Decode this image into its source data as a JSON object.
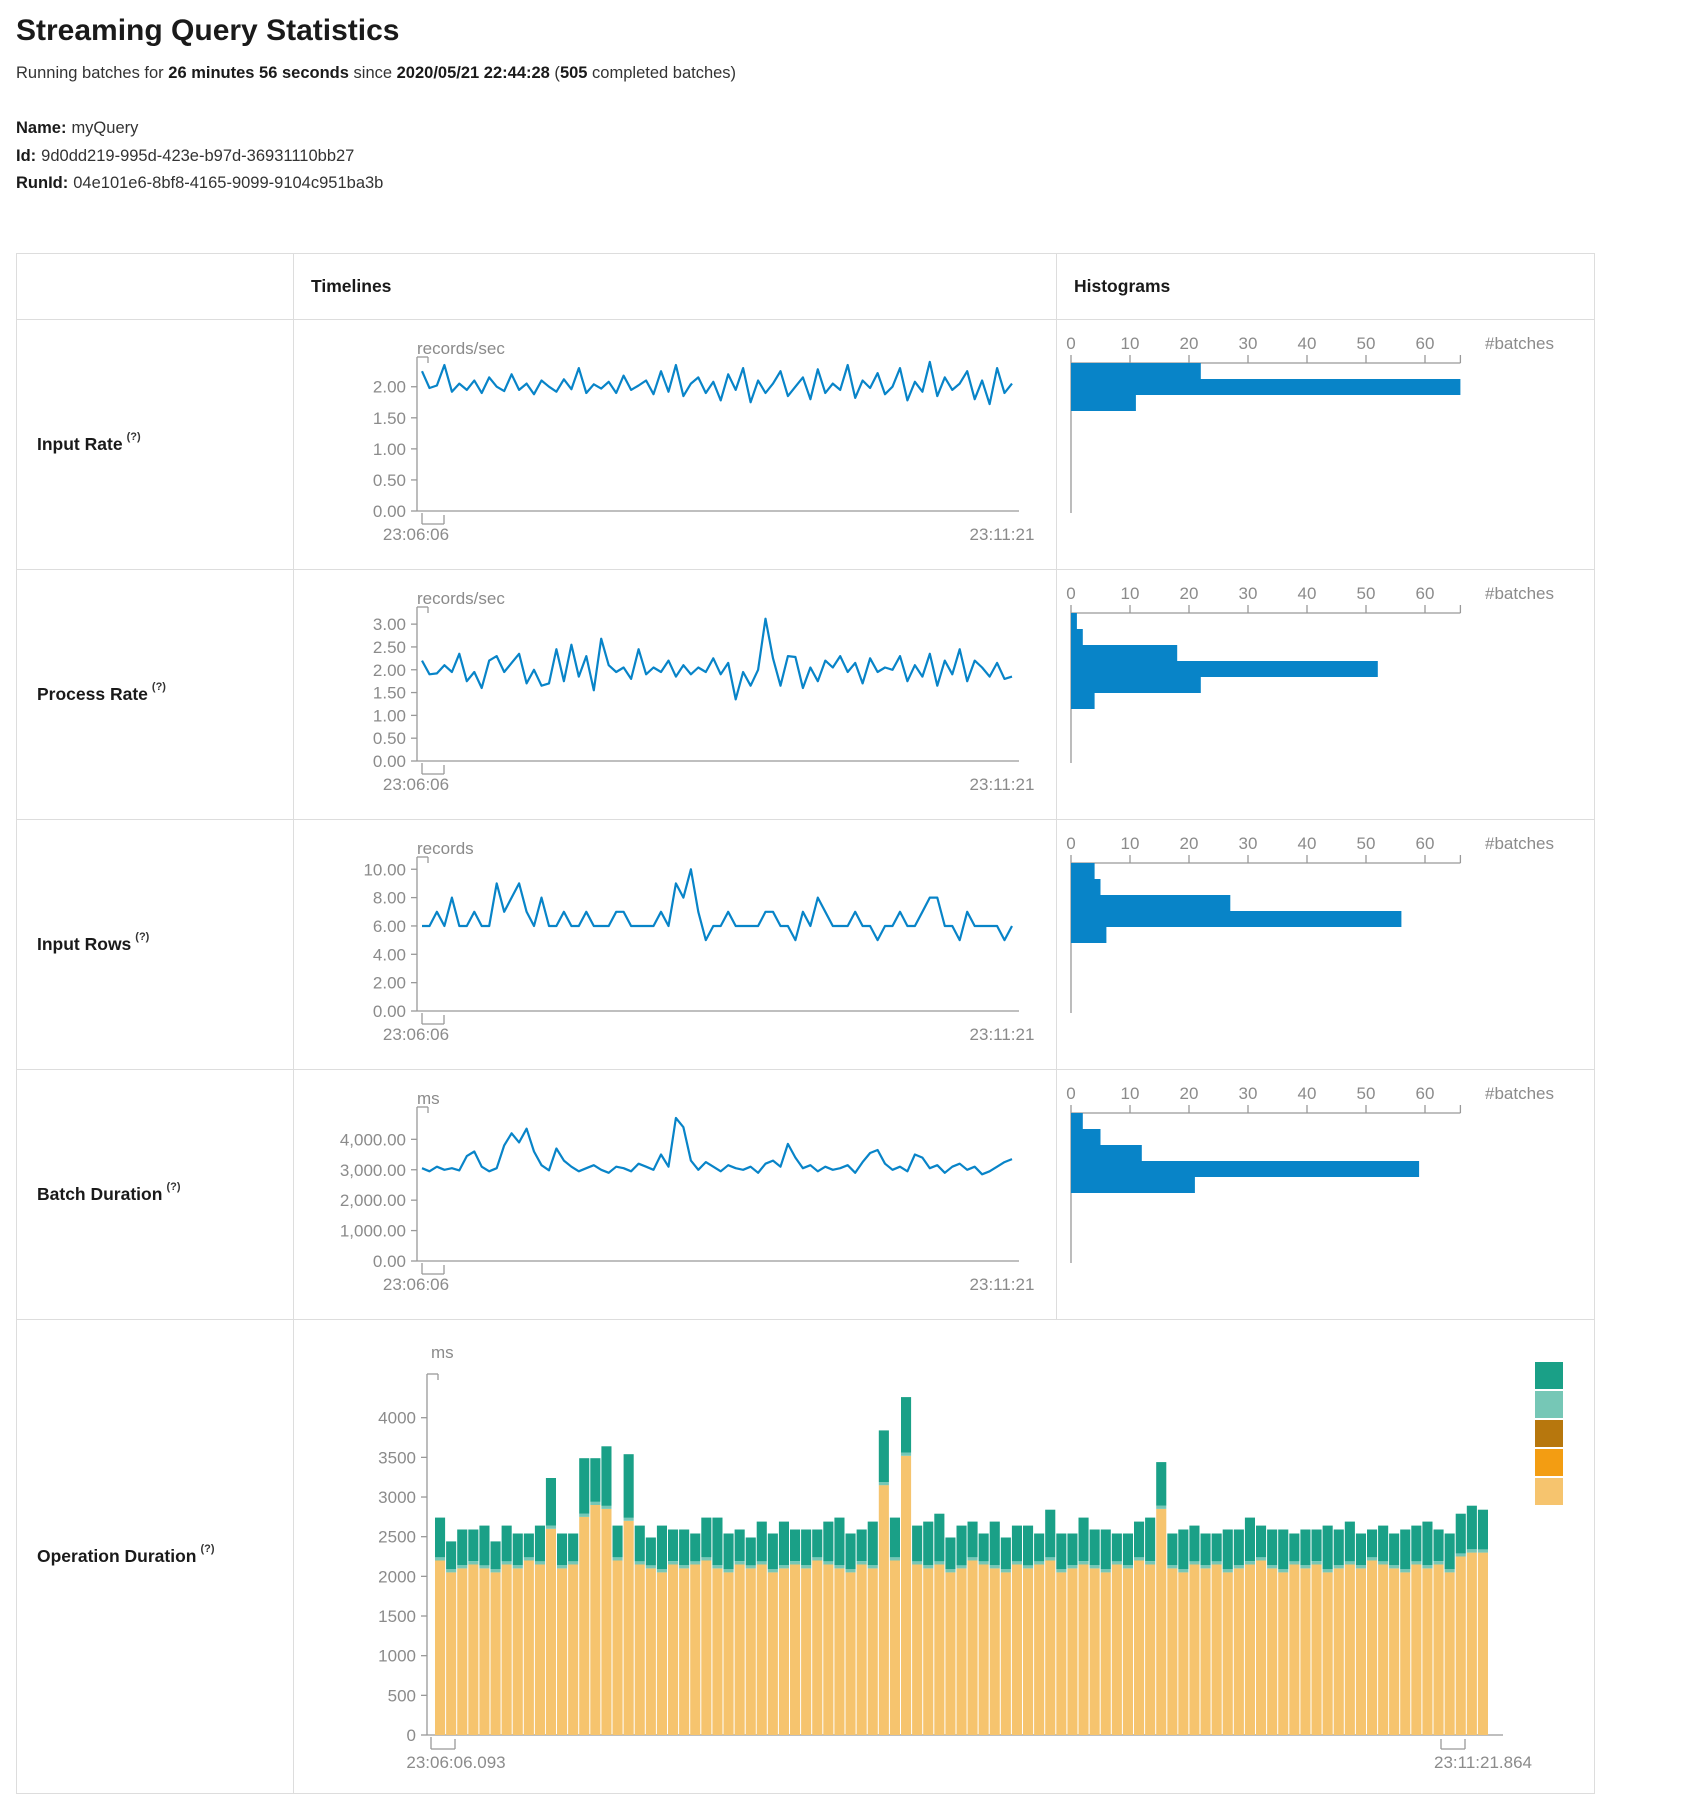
{
  "page": {
    "title": "Streaming Query Statistics"
  },
  "status": {
    "prefix": "Running batches for ",
    "duration": "26 minutes 56 seconds",
    "mid": " since ",
    "time": "2020/05/21 22:44:28",
    "open": " (",
    "count": "505",
    "tail": " completed batches)"
  },
  "meta": {
    "name_label": "Name:",
    "name": "myQuery",
    "id_label": "Id:",
    "id": "9d0dd219-995d-423e-b97d-36931110bb27",
    "runid_label": "RunId:",
    "runid": "04e101e6-8bf8-4165-9099-9104c951ba3b"
  },
  "table": {
    "timelines_header": "Timelines",
    "histograms_header": "Histograms"
  },
  "rows": [
    {
      "label": "Input Rate",
      "help": "(?)"
    },
    {
      "label": "Process Rate",
      "help": "(?)"
    },
    {
      "label": "Input Rows",
      "help": "(?)"
    },
    {
      "label": "Batch Duration",
      "help": "(?)"
    },
    {
      "label": "Operation Duration",
      "help": "(?)"
    }
  ],
  "colors": {
    "line": "#0884c8",
    "hist_bar": "#0884c8",
    "axis": "#999999",
    "tick_text": "#8b8b8b",
    "border": "#dddddd",
    "stack_bottom": "#F6C46E",
    "stack_middle": "#76C7B6",
    "stack_top": "#1AA087",
    "legend": [
      "#1AA087",
      "#76C7B6",
      "#B7770D",
      "#F39D12",
      "#F6C46E"
    ]
  },
  "chart_data": [
    {
      "row": "Input Rate",
      "timeline": {
        "type": "line",
        "unit": "records/sec",
        "ylim": [
          0,
          2.35
        ],
        "y_ticks": [
          2,
          1.5,
          1,
          0.5,
          0
        ],
        "y_tick_labels": [
          "2.00",
          "1.50",
          "1.00",
          "0.50",
          "0.00"
        ],
        "x_start_label": "23:06:06",
        "x_end_label": "23:11:21",
        "values": [
          2.25,
          1.98,
          2.02,
          2.35,
          1.92,
          2.05,
          1.95,
          2.1,
          1.9,
          2.15,
          2.0,
          1.93,
          2.2,
          1.95,
          2.05,
          1.88,
          2.1,
          2.0,
          1.92,
          2.12,
          1.96,
          2.3,
          1.9,
          2.04,
          1.97,
          2.08,
          1.9,
          2.18,
          1.95,
          2.02,
          2.1,
          1.88,
          2.25,
          1.92,
          2.35,
          1.85,
          2.05,
          2.15,
          1.9,
          2.08,
          1.78,
          2.2,
          1.95,
          2.3,
          1.75,
          2.1,
          1.9,
          2.05,
          2.25,
          1.85,
          2.0,
          2.15,
          1.8,
          2.28,
          1.9,
          2.05,
          1.95,
          2.35,
          1.82,
          2.1,
          1.98,
          2.22,
          1.88,
          2.0,
          2.3,
          1.78,
          2.08,
          1.92,
          2.4,
          1.85,
          2.15,
          1.95,
          2.05,
          2.25,
          1.8,
          2.1,
          1.72,
          2.3,
          1.9,
          2.05
        ]
      },
      "histogram": {
        "type": "bar",
        "xlabel": "#batches",
        "x_ticks": [
          0,
          10,
          20,
          30,
          40,
          50,
          60
        ],
        "xlim": [
          0,
          66
        ],
        "bins": [
          22,
          66,
          11
        ]
      }
    },
    {
      "row": "Process Rate",
      "timeline": {
        "type": "line",
        "unit": "records/sec",
        "ylim": [
          0,
          3.2
        ],
        "y_ticks": [
          3,
          2.5,
          2,
          1.5,
          1,
          0.5,
          0
        ],
        "y_tick_labels": [
          "3.00",
          "2.50",
          "2.00",
          "1.50",
          "1.00",
          "0.50",
          "0.00"
        ],
        "x_start_label": "23:06:06",
        "x_end_label": "23:11:21",
        "values": [
          2.2,
          1.9,
          1.92,
          2.1,
          1.95,
          2.35,
          1.75,
          1.95,
          1.6,
          2.2,
          2.3,
          1.95,
          2.15,
          2.35,
          1.7,
          2.0,
          1.65,
          1.7,
          2.45,
          1.75,
          2.55,
          1.85,
          2.3,
          1.55,
          2.68,
          2.1,
          1.95,
          2.05,
          1.8,
          2.45,
          1.9,
          2.05,
          1.95,
          2.2,
          1.85,
          2.1,
          1.9,
          2.05,
          1.95,
          2.25,
          1.9,
          2.15,
          1.35,
          1.95,
          1.65,
          2.0,
          3.12,
          2.25,
          1.65,
          2.3,
          2.28,
          1.6,
          2.05,
          1.75,
          2.2,
          2.05,
          2.3,
          1.95,
          2.15,
          1.7,
          2.25,
          1.95,
          2.05,
          2.0,
          2.3,
          1.75,
          2.1,
          1.85,
          2.35,
          1.65,
          2.2,
          1.9,
          2.45,
          1.75,
          2.2,
          2.05,
          1.85,
          2.15,
          1.8,
          1.85
        ]
      },
      "histogram": {
        "type": "bar",
        "xlabel": "#batches",
        "x_ticks": [
          0,
          10,
          20,
          30,
          40,
          50,
          60
        ],
        "xlim": [
          0,
          66
        ],
        "bins": [
          1,
          2,
          18,
          52,
          22,
          4
        ]
      }
    },
    {
      "row": "Input Rows",
      "timeline": {
        "type": "line",
        "unit": "records",
        "ylim": [
          0,
          10.3
        ],
        "y_ticks": [
          10,
          8,
          6,
          4,
          2,
          0
        ],
        "y_tick_labels": [
          "10.00",
          "8.00",
          "6.00",
          "4.00",
          "2.00",
          "0.00"
        ],
        "x_start_label": "23:06:06",
        "x_end_label": "23:11:21",
        "values": [
          6,
          6,
          7,
          6,
          8,
          6,
          6,
          7,
          6,
          6,
          9,
          7,
          8,
          9,
          7,
          6,
          8,
          6,
          6,
          7,
          6,
          6,
          7,
          6,
          6,
          6,
          7,
          7,
          6,
          6,
          6,
          6,
          7,
          6,
          9,
          8,
          10,
          7,
          5,
          6,
          6,
          7,
          6,
          6,
          6,
          6,
          7,
          7,
          6,
          6,
          5,
          7,
          6,
          8,
          7,
          6,
          6,
          6,
          7,
          6,
          6,
          5,
          6,
          6,
          7,
          6,
          6,
          7,
          8,
          8,
          6,
          6,
          5,
          7,
          6,
          6,
          6,
          6,
          5,
          6
        ]
      },
      "histogram": {
        "type": "bar",
        "xlabel": "#batches",
        "x_ticks": [
          0,
          10,
          20,
          30,
          40,
          50,
          60
        ],
        "xlim": [
          0,
          66
        ],
        "bins": [
          4,
          5,
          27,
          56,
          6
        ]
      }
    },
    {
      "row": "Batch Duration",
      "timeline": {
        "type": "line",
        "unit": "ms",
        "ylim": [
          0,
          4800
        ],
        "y_ticks": [
          4000,
          3000,
          2000,
          1000,
          0
        ],
        "y_tick_labels": [
          "4,000.00",
          "3,000.00",
          "2,000.00",
          "1,000.00",
          "0.00"
        ],
        "x_start_label": "23:06:06",
        "x_end_label": "23:11:21",
        "values": [
          3050,
          2950,
          3100,
          3000,
          3050,
          2980,
          3450,
          3600,
          3100,
          2950,
          3050,
          3800,
          4200,
          3900,
          4350,
          3600,
          3150,
          2980,
          3700,
          3300,
          3100,
          2950,
          3050,
          3150,
          3000,
          2900,
          3100,
          3050,
          2950,
          3200,
          3100,
          3000,
          3500,
          3100,
          4700,
          4400,
          3300,
          3000,
          3250,
          3100,
          2950,
          3150,
          3050,
          3000,
          3100,
          2900,
          3200,
          3300,
          3100,
          3850,
          3400,
          3050,
          3150,
          2950,
          3100,
          3000,
          3050,
          3150,
          2900,
          3250,
          3550,
          3650,
          3200,
          3000,
          3100,
          2950,
          3500,
          3400,
          3050,
          3150,
          2900,
          3100,
          3200,
          3000,
          3100,
          2850,
          2950,
          3100,
          3250,
          3350
        ]
      },
      "histogram": {
        "type": "bar",
        "xlabel": "#batches",
        "x_ticks": [
          0,
          10,
          20,
          30,
          40,
          50,
          60
        ],
        "xlim": [
          0,
          66
        ],
        "bins": [
          2,
          5,
          12,
          59,
          21
        ]
      }
    },
    {
      "row": "Operation Duration",
      "timeline": {
        "type": "stacked-bar",
        "unit": "ms",
        "ylim": [
          0,
          4450
        ],
        "y_ticks": [
          4000,
          3500,
          3000,
          2500,
          2000,
          1500,
          1000,
          500,
          0
        ],
        "y_tick_labels": [
          "4000",
          "3500",
          "3000",
          "2500",
          "2000",
          "1500",
          "1000",
          "500",
          "0"
        ],
        "x_start_label": "23:06:06.093",
        "x_end_label": "23:11:21.864",
        "series": [
          {
            "name": "stack-bottom",
            "color": "#F6C46E",
            "values": [
              2200,
              2050,
              2100,
              2150,
              2100,
              2050,
              2150,
              2100,
              2200,
              2150,
              2600,
              2100,
              2150,
              2750,
              2900,
              2850,
              2200,
              2700,
              2150,
              2100,
              2050,
              2150,
              2100,
              2150,
              2200,
              2100,
              2050,
              2150,
              2100,
              2150,
              2050,
              2100,
              2150,
              2100,
              2200,
              2150,
              2100,
              2050,
              2150,
              2100,
              3150,
              2200,
              3520,
              2150,
              2100,
              2150,
              2050,
              2100,
              2200,
              2150,
              2100,
              2050,
              2150,
              2100,
              2150,
              2200,
              2050,
              2100,
              2150,
              2100,
              2050,
              2150,
              2100,
              2200,
              2150,
              2850,
              2100,
              2050,
              2150,
              2100,
              2150,
              2050,
              2100,
              2150,
              2200,
              2100,
              2050,
              2150,
              2100,
              2150,
              2050,
              2100,
              2150,
              2100,
              2200,
              2150,
              2100,
              2050,
              2150,
              2100,
              2150,
              2050,
              2250,
              2300,
              2300
            ]
          },
          {
            "name": "stack-middle",
            "color": "#76C7B6",
            "value_constant": 40
          },
          {
            "name": "stack-top",
            "color": "#1AA087",
            "values": [
              500,
              350,
              450,
              400,
              500,
              350,
              450,
              400,
              300,
              450,
              600,
              400,
              350,
              700,
              550,
              750,
              400,
              800,
              450,
              350,
              550,
              400,
              450,
              350,
              500,
              600,
              450,
              400,
              350,
              500,
              450,
              550,
              400,
              450,
              350,
              500,
              600,
              450,
              400,
              550,
              650,
              500,
              700,
              450,
              550,
              600,
              400,
              500,
              450,
              350,
              550,
              400,
              450,
              500,
              350,
              600,
              450,
              400,
              550,
              450,
              500,
              350,
              400,
              450,
              550,
              550,
              400,
              500,
              450,
              400,
              350,
              500,
              450,
              550,
              400,
              450,
              500,
              350,
              450,
              400,
              550,
              450,
              500,
              400,
              350,
              450,
              400,
              500,
              450,
              550,
              400,
              450,
              500,
              550,
              500
            ]
          }
        ],
        "legend_colors": [
          "#1AA087",
          "#76C7B6",
          "#B7770D",
          "#F39D12",
          "#F6C46E"
        ]
      }
    }
  ]
}
